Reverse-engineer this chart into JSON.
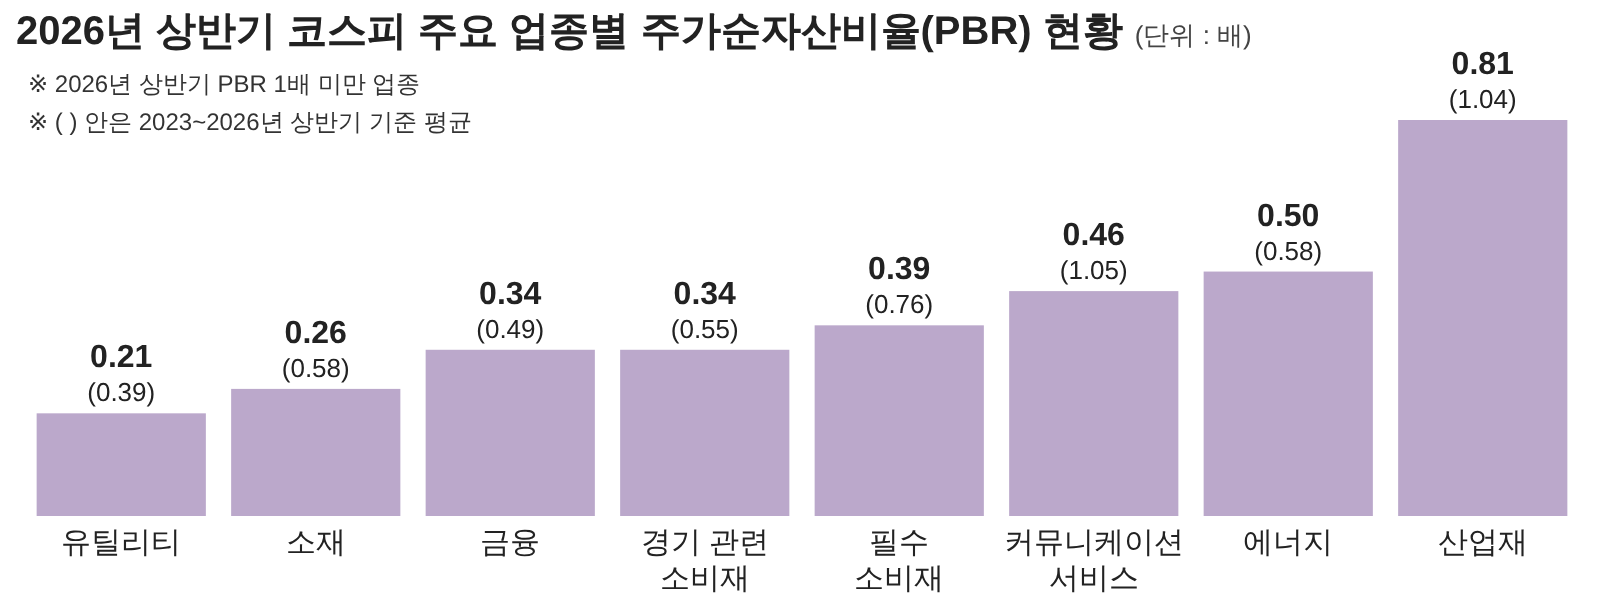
{
  "chart_data": {
    "type": "bar",
    "title": "2026년 상반기 코스피 주요 업종별 주가순자산비율(PBR) 현황",
    "subtitle": "(단위 : 배)",
    "annotations": [
      "※ 2026년 상반기 PBR 1배 미만 업종",
      "※ ( ) 안은 2023~2026년 상반기 기준 평균"
    ],
    "categories": [
      "유틸리티",
      "소재",
      "금융",
      "경기 관련\n소비재",
      "필수\n소비재",
      "커뮤니케이션\n서비스",
      "에너지",
      "산업재"
    ],
    "values": [
      0.21,
      0.26,
      0.34,
      0.34,
      0.39,
      0.46,
      0.5,
      0.81
    ],
    "value_labels": [
      "0.21\n(0.39)",
      "0.26\n(0.58)",
      "0.34\n(0.49)",
      "0.34\n(0.55)",
      "0.39\n(0.76)",
      "0.46\n(1.05)",
      "0.50\n(0.58)",
      "0.81\n(1.04)"
    ],
    "color": "#bba8cb"
  }
}
